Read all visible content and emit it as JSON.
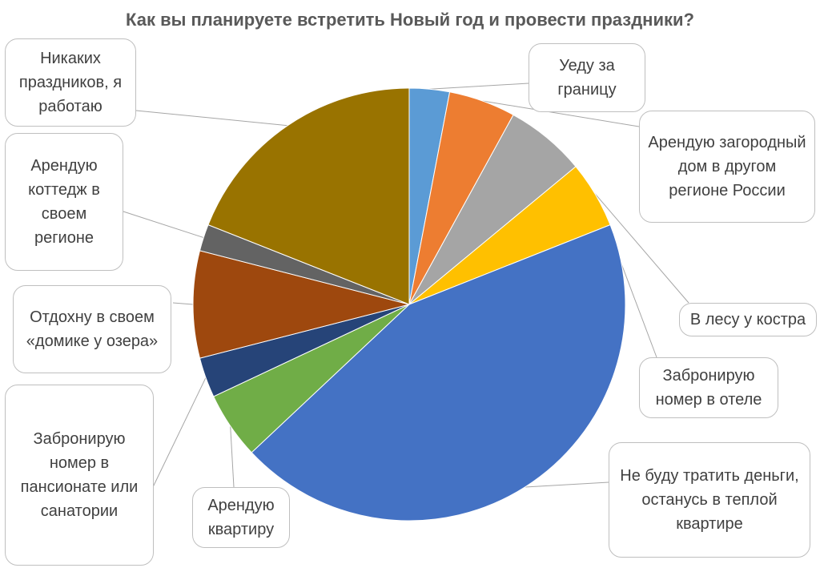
{
  "chart_data": {
    "type": "pie",
    "title": "Как вы планируете встретить Новый год и провести праздники?",
    "categories": [
      "Уеду за границу",
      "Арендую загородный дом в другом регионе России",
      "В лесу у костра",
      "Забронирую номер в отеле",
      "Не буду тратить деньги, останусь в теплой квартире",
      "Арендую квартиру",
      "Забронирую номер в пансионате или санатории",
      "Отдохну в своем «домике у озера»",
      "Арендую коттедж в своем регионе",
      "Никаких праздников, я работаю"
    ],
    "values": [
      3,
      5,
      6,
      5,
      44,
      5,
      3,
      8,
      2,
      19
    ],
    "colors": [
      "#5b9bd5",
      "#ed7d31",
      "#a5a5a5",
      "#ffc000",
      "#4472c4",
      "#70ad47",
      "#264478",
      "#9e480e",
      "#636363",
      "#997300"
    ],
    "legend": "callout labels"
  }
}
